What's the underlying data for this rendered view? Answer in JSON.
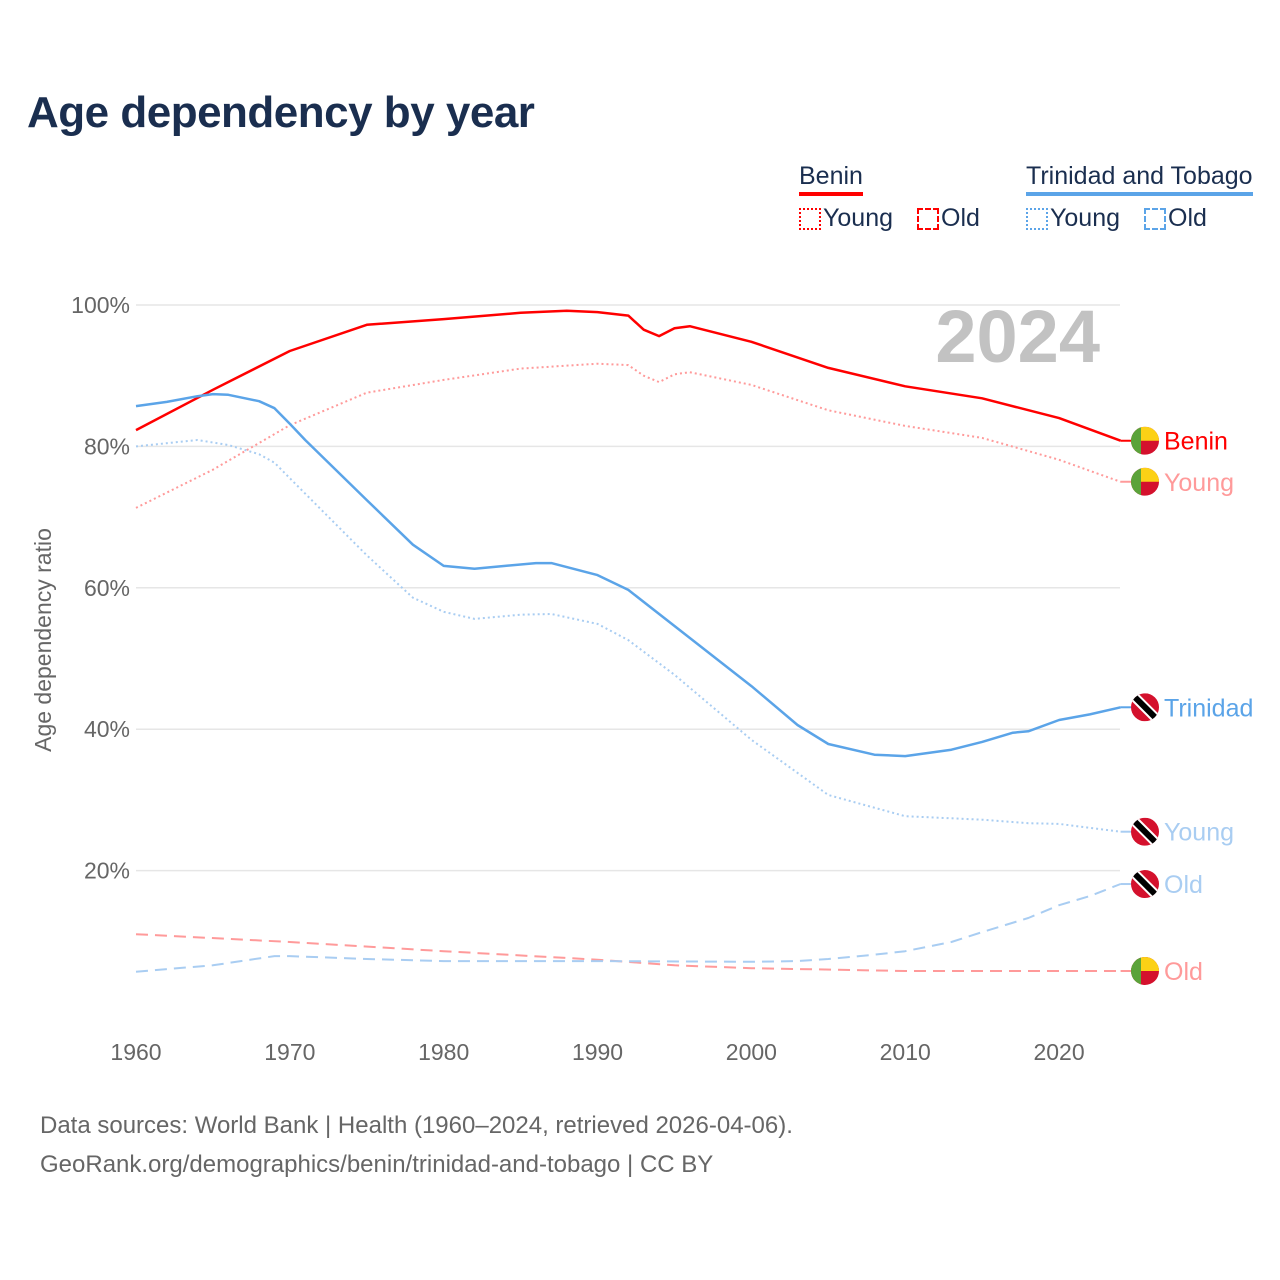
{
  "title": "Age dependency by year",
  "legend": {
    "groups": [
      {
        "name": "Benin",
        "color": "#ff0000",
        "items": [
          "Young",
          "Old"
        ]
      },
      {
        "name": "Trinidad and Tobago",
        "color": "#5ba4e8",
        "items": [
          "Young",
          "Old"
        ]
      }
    ]
  },
  "source": {
    "line1": "Data sources: World Bank | Health (1960–2024, retrieved 2026-04-06).",
    "line2": "GeoRank.org/demographics/benin/trinidad-and-tobago | CC BY"
  },
  "chart_data": {
    "type": "line",
    "title": "Age dependency by year",
    "ylabel": "Age dependency ratio",
    "xlabel": "",
    "year_watermark": "2024",
    "xlim": [
      1960,
      2024
    ],
    "ylim": [
      0,
      100
    ],
    "x_ticks": [
      1960,
      1970,
      1980,
      1990,
      2000,
      2010,
      2020
    ],
    "y_ticks": [
      {
        "v": 20,
        "label": "20%"
      },
      {
        "v": 40,
        "label": "40%"
      },
      {
        "v": 60,
        "label": "60%"
      },
      {
        "v": 80,
        "label": "80%"
      },
      {
        "v": 100,
        "label": "100%"
      }
    ],
    "grid": true,
    "series": [
      {
        "name": "Benin",
        "end_label": "Benin",
        "country": "benin",
        "color": "#ff0000",
        "style": "solid",
        "points": [
          [
            1960,
            82.3
          ],
          [
            1965,
            88
          ],
          [
            1970,
            93.5
          ],
          [
            1975,
            97.2
          ],
          [
            1980,
            98
          ],
          [
            1985,
            98.9
          ],
          [
            1988,
            99.2
          ],
          [
            1990,
            99
          ],
          [
            1992,
            98.5
          ],
          [
            1993,
            96.5
          ],
          [
            1994,
            95.6
          ],
          [
            1995,
            96.7
          ],
          [
            1996,
            97
          ],
          [
            2000,
            94.8
          ],
          [
            2005,
            91.1
          ],
          [
            2010,
            88.5
          ],
          [
            2015,
            86.8
          ],
          [
            2020,
            84
          ],
          [
            2024,
            80.8
          ]
        ]
      },
      {
        "name": "Benin Young",
        "end_label": "Young",
        "country": "benin",
        "color": "#ff9a9a",
        "style": "dotted",
        "points": [
          [
            1960,
            71.3
          ],
          [
            1965,
            76.7
          ],
          [
            1970,
            83
          ],
          [
            1975,
            87.6
          ],
          [
            1980,
            89.4
          ],
          [
            1985,
            91
          ],
          [
            1990,
            91.7
          ],
          [
            1992,
            91.5
          ],
          [
            1993,
            90
          ],
          [
            1994,
            89.1
          ],
          [
            1995,
            90.2
          ],
          [
            1996,
            90.5
          ],
          [
            2000,
            88.7
          ],
          [
            2005,
            85.1
          ],
          [
            2010,
            82.9
          ],
          [
            2015,
            81.2
          ],
          [
            2020,
            78.1
          ],
          [
            2024,
            75
          ]
        ]
      },
      {
        "name": "Benin Old",
        "end_label": "Old",
        "country": "benin",
        "color": "#ff9a9a",
        "style": "dashed",
        "points": [
          [
            1960,
            11
          ],
          [
            1970,
            9.9
          ],
          [
            1980,
            8.6
          ],
          [
            1990,
            7.4
          ],
          [
            1995,
            6.6
          ],
          [
            2000,
            6.2
          ],
          [
            2010,
            5.8
          ],
          [
            2024,
            5.8
          ]
        ]
      },
      {
        "name": "Trinidad and Tobago",
        "end_label": "Trinidad",
        "country": "trinidad",
        "color": "#5ba4e8",
        "style": "solid",
        "points": [
          [
            1960,
            85.7
          ],
          [
            1962,
            86.3
          ],
          [
            1964,
            87.1
          ],
          [
            1965,
            87.4
          ],
          [
            1966,
            87.3
          ],
          [
            1968,
            86.4
          ],
          [
            1969,
            85.4
          ],
          [
            1970,
            83.2
          ],
          [
            1971,
            80.9
          ],
          [
            1975,
            72.4
          ],
          [
            1978,
            66.1
          ],
          [
            1980,
            63.1
          ],
          [
            1982,
            62.7
          ],
          [
            1984,
            63.1
          ],
          [
            1986,
            63.5
          ],
          [
            1987,
            63.5
          ],
          [
            1990,
            61.8
          ],
          [
            1992,
            59.7
          ],
          [
            1995,
            54.6
          ],
          [
            2000,
            46.1
          ],
          [
            2003,
            40.6
          ],
          [
            2005,
            37.9
          ],
          [
            2008,
            36.4
          ],
          [
            2010,
            36.2
          ],
          [
            2013,
            37.1
          ],
          [
            2015,
            38.2
          ],
          [
            2017,
            39.5
          ],
          [
            2018,
            39.7
          ],
          [
            2020,
            41.3
          ],
          [
            2022,
            42.1
          ],
          [
            2024,
            43.1
          ]
        ]
      },
      {
        "name": "Trinidad and Tobago Young",
        "end_label": "Young",
        "country": "trinidad",
        "color": "#a9cdf2",
        "style": "dotted",
        "points": [
          [
            1960,
            80
          ],
          [
            1964,
            80.9
          ],
          [
            1966,
            80.2
          ],
          [
            1968,
            78.9
          ],
          [
            1969,
            77.7
          ],
          [
            1970,
            75.5
          ],
          [
            1975,
            64.6
          ],
          [
            1978,
            58.6
          ],
          [
            1980,
            56.6
          ],
          [
            1982,
            55.6
          ],
          [
            1985,
            56.2
          ],
          [
            1987,
            56.3
          ],
          [
            1990,
            54.9
          ],
          [
            1992,
            52.6
          ],
          [
            1995,
            47.7
          ],
          [
            2000,
            38.5
          ],
          [
            2005,
            30.7
          ],
          [
            2010,
            27.7
          ],
          [
            2015,
            27.2
          ],
          [
            2018,
            26.7
          ],
          [
            2020,
            26.6
          ],
          [
            2024,
            25.5
          ]
        ]
      },
      {
        "name": "Trinidad and Tobago Old",
        "end_label": "Old",
        "country": "trinidad",
        "color": "#a9cdf2",
        "style": "dashed",
        "points": [
          [
            1960,
            5.7
          ],
          [
            1965,
            6.6
          ],
          [
            1969,
            7.9
          ],
          [
            1970,
            7.9
          ],
          [
            1975,
            7.5
          ],
          [
            1980,
            7.2
          ],
          [
            1990,
            7.2
          ],
          [
            2000,
            7.1
          ],
          [
            2003,
            7.2
          ],
          [
            2005,
            7.5
          ],
          [
            2008,
            8.1
          ],
          [
            2010,
            8.6
          ],
          [
            2013,
            9.9
          ],
          [
            2015,
            11.3
          ],
          [
            2018,
            13.3
          ],
          [
            2020,
            15.1
          ],
          [
            2022,
            16.4
          ],
          [
            2024,
            18.1
          ]
        ]
      }
    ]
  }
}
